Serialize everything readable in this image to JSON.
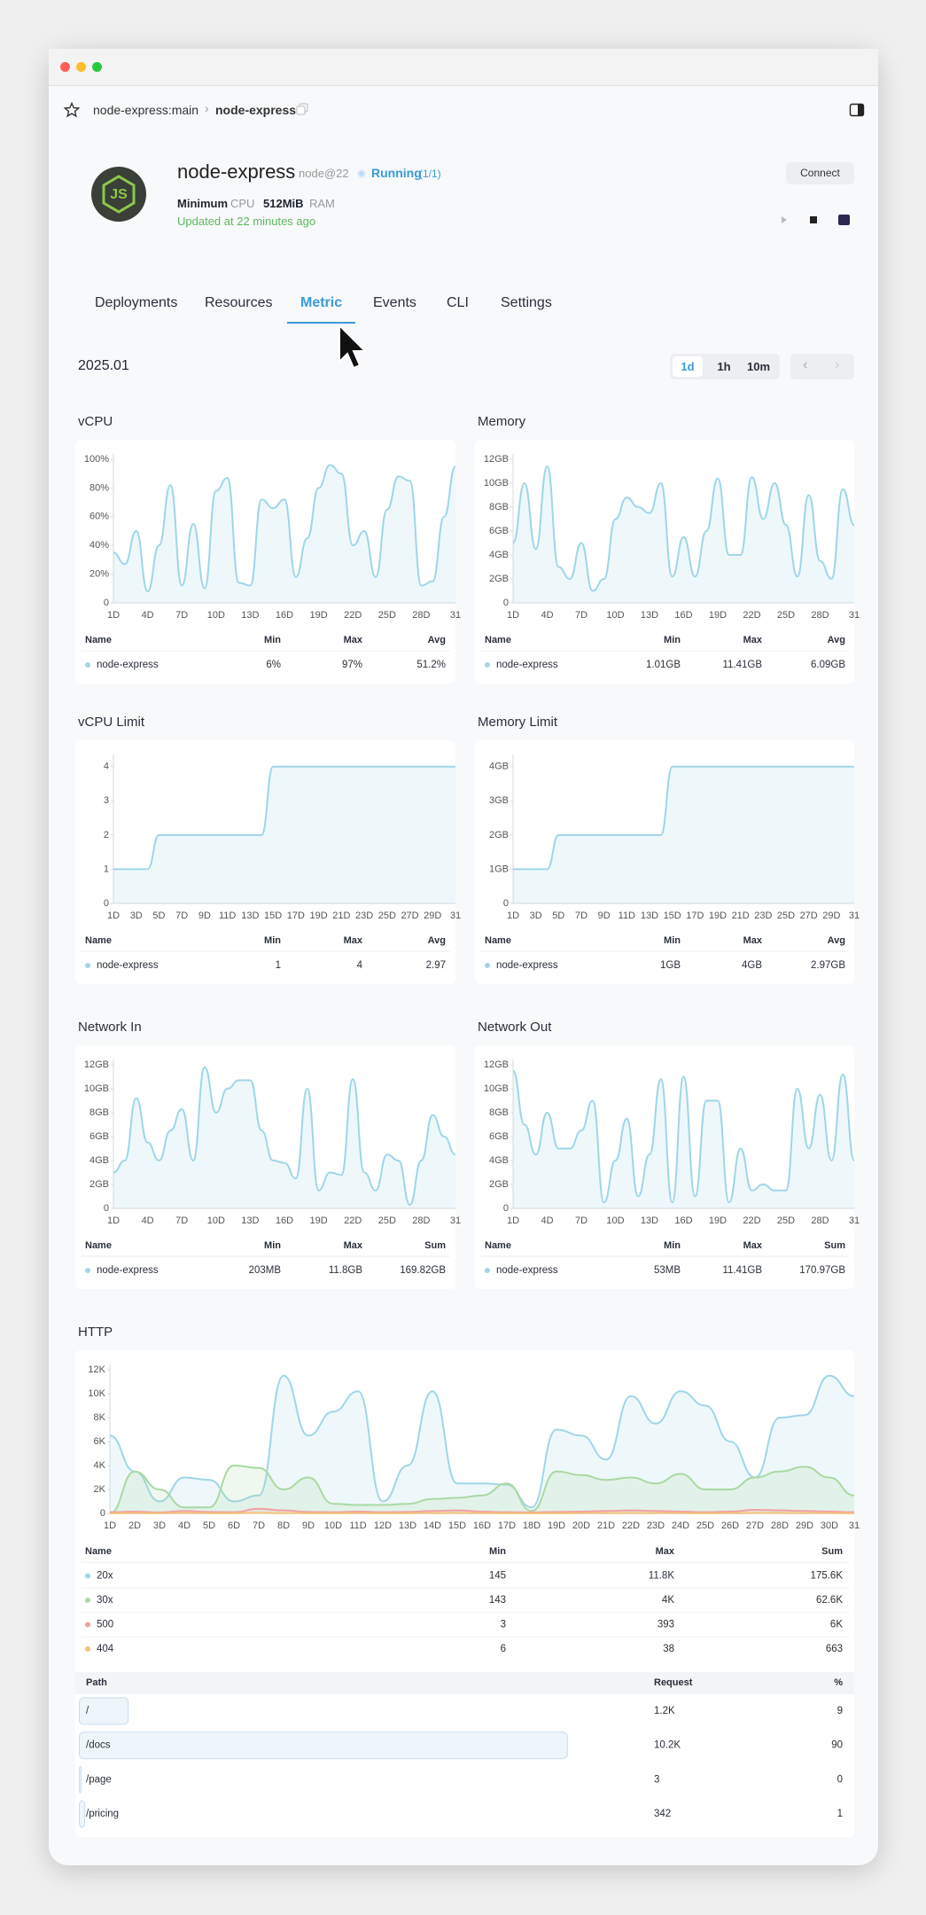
{
  "breadcrumb": [
    "node-express:main",
    "node-express"
  ],
  "service": {
    "logo": "JS",
    "name": "node-express",
    "runtime": "node@22",
    "status": "Running",
    "status_count": "(1/1)",
    "resources": [
      "Minimum",
      "CPU",
      "512MiB",
      "RAM"
    ],
    "updated": "Updated at 22 minutes ago",
    "connect": "Connect"
  },
  "tabs": [
    "Deployments",
    "Resources",
    "Metric",
    "Events",
    "CLI",
    "Settings"
  ],
  "active_tab": 2,
  "period": "2025.01",
  "ranges": [
    "1d",
    "1h",
    "10m"
  ],
  "active_range": 0,
  "chart_data": [
    {
      "type": "line",
      "title": "vCPU",
      "categories": [
        "1D",
        null,
        null,
        "4D",
        null,
        null,
        "7D",
        null,
        null,
        "10D",
        null,
        null,
        "13D",
        null,
        null,
        "16D",
        null,
        null,
        "19D",
        null,
        null,
        "22D",
        null,
        null,
        "25D",
        null,
        null,
        "28D",
        null,
        null,
        "31"
      ],
      "ylim": [
        0,
        100
      ],
      "yticks": [
        0,
        {
          "value": 20,
          "label": "20%"
        },
        {
          "value": 40,
          "label": "40%"
        },
        {
          "value": 60,
          "label": "60%"
        },
        {
          "value": 80,
          "label": "80%"
        },
        {
          "value": 100,
          "label": "100%"
        }
      ],
      "series": [
        {
          "name": "node-express",
          "color": "#9fd6e8",
          "values": [
            35,
            27,
            50,
            8,
            40,
            82,
            12,
            55,
            10,
            78,
            87,
            14,
            12,
            72,
            66,
            72,
            18,
            45,
            80,
            96,
            90,
            40,
            50,
            18,
            65,
            88,
            85,
            12,
            15,
            60,
            95
          ]
        }
      ],
      "columns": [
        "Name",
        "Min",
        "Max",
        "Avg"
      ],
      "stats": [
        [
          "6%",
          "97%",
          "51.2%"
        ]
      ]
    },
    {
      "type": "line",
      "title": "Memory",
      "categories": [
        "1D",
        null,
        null,
        "4D",
        null,
        null,
        "7D",
        null,
        null,
        "10D",
        null,
        null,
        "13D",
        null,
        null,
        "16D",
        null,
        null,
        "19D",
        null,
        null,
        "22D",
        null,
        null,
        "25D",
        null,
        null,
        "28D",
        null,
        null,
        "31"
      ],
      "ylim": [
        0,
        12
      ],
      "yticks": [
        0,
        {
          "value": 2,
          "label": "2GB"
        },
        {
          "value": 4,
          "label": "4GB"
        },
        {
          "value": 6,
          "label": "6GB"
        },
        {
          "value": 8,
          "label": "8GB"
        },
        {
          "value": 10,
          "label": "10GB"
        },
        {
          "value": 12,
          "label": "12GB"
        }
      ],
      "series": [
        {
          "name": "node-express",
          "color": "#9fd6e8",
          "values": [
            5,
            10,
            4.5,
            11.4,
            3,
            2,
            5,
            1,
            2,
            7,
            8.8,
            8,
            7.5,
            10,
            2.2,
            5.5,
            2.2,
            6,
            10.4,
            4,
            4,
            10.5,
            7,
            10,
            6.5,
            2.2,
            9,
            3.5,
            2,
            9.5,
            6.5
          ]
        }
      ],
      "columns": [
        "Name",
        "Min",
        "Max",
        "Avg"
      ],
      "stats": [
        [
          "1.01GB",
          "11.41GB",
          "6.09GB"
        ]
      ]
    },
    {
      "type": "line",
      "title": "vCPU Limit",
      "categories": [
        "1D",
        null,
        "3D",
        null,
        "5D",
        null,
        "7D",
        null,
        "9D",
        null,
        "11D",
        null,
        "13D",
        null,
        "15D",
        null,
        "17D",
        null,
        "19D",
        null,
        "21D",
        null,
        "23D",
        null,
        "25D",
        null,
        "27D",
        null,
        "29D",
        null,
        "31"
      ],
      "ylim": [
        0,
        4.2
      ],
      "yticks": [
        0,
        1,
        2,
        3,
        4
      ],
      "series": [
        {
          "name": "node-express",
          "color": "#9fd6e8",
          "values": [
            1,
            1,
            1,
            1,
            2,
            2,
            2,
            2,
            2,
            2,
            2,
            2,
            2,
            2,
            4,
            4,
            4,
            4,
            4,
            4,
            4,
            4,
            4,
            4,
            4,
            4,
            4,
            4,
            4,
            4,
            4
          ]
        }
      ],
      "columns": [
        "Name",
        "Min",
        "Max",
        "Avg"
      ],
      "stats": [
        [
          "1",
          "4",
          "2.97"
        ]
      ]
    },
    {
      "type": "line",
      "title": "Memory Limit",
      "categories": [
        "1D",
        null,
        "3D",
        null,
        "5D",
        null,
        "7D",
        null,
        "9D",
        null,
        "11D",
        null,
        "13D",
        null,
        "15D",
        null,
        "17D",
        null,
        "19D",
        null,
        "21D",
        null,
        "23D",
        null,
        "25D",
        null,
        "27D",
        null,
        "29D",
        null,
        "31"
      ],
      "ylim": [
        0,
        4.2
      ],
      "yticks": [
        0,
        {
          "value": 1,
          "label": "1GB"
        },
        {
          "value": 2,
          "label": "2GB"
        },
        {
          "value": 3,
          "label": "3GB"
        },
        {
          "value": 4,
          "label": "4GB"
        }
      ],
      "series": [
        {
          "name": "node-express",
          "color": "#9fd6e8",
          "values": [
            1,
            1,
            1,
            1,
            2,
            2,
            2,
            2,
            2,
            2,
            2,
            2,
            2,
            2,
            4,
            4,
            4,
            4,
            4,
            4,
            4,
            4,
            4,
            4,
            4,
            4,
            4,
            4,
            4,
            4,
            4
          ]
        }
      ],
      "columns": [
        "Name",
        "Min",
        "Max",
        "Avg"
      ],
      "stats": [
        [
          "1GB",
          "4GB",
          "2.97GB"
        ]
      ]
    },
    {
      "type": "line",
      "title": "Network In",
      "categories": [
        "1D",
        null,
        null,
        "4D",
        null,
        null,
        "7D",
        null,
        null,
        "10D",
        null,
        null,
        "13D",
        null,
        null,
        "16D",
        null,
        null,
        "19D",
        null,
        null,
        "22D",
        null,
        null,
        "25D",
        null,
        null,
        "28D",
        null,
        null,
        "31"
      ],
      "ylim": [
        0,
        12
      ],
      "yticks": [
        0,
        {
          "value": 2,
          "label": "2GB"
        },
        {
          "value": 4,
          "label": "4GB"
        },
        {
          "value": 6,
          "label": "6GB"
        },
        {
          "value": 8,
          "label": "8GB"
        },
        {
          "value": 10,
          "label": "10GB"
        },
        {
          "value": 12,
          "label": "12GB"
        }
      ],
      "series": [
        {
          "name": "node-express",
          "color": "#9fd6e8",
          "values": [
            3,
            4,
            9.2,
            5.5,
            4,
            6.5,
            8.3,
            4,
            11.8,
            8,
            10,
            10.7,
            10.7,
            6.5,
            4,
            3.8,
            2.5,
            10,
            1.5,
            3,
            2.8,
            10.8,
            3,
            1.5,
            4.5,
            4,
            0.3,
            4,
            7.8,
            6,
            4.5
          ]
        }
      ],
      "columns": [
        "Name",
        "Min",
        "Max",
        "Sum"
      ],
      "stats": [
        [
          "203MB",
          "11.8GB",
          "169.82GB"
        ]
      ]
    },
    {
      "type": "line",
      "title": "Network Out",
      "categories": [
        "1D",
        null,
        null,
        "4D",
        null,
        null,
        "7D",
        null,
        null,
        "10D",
        null,
        null,
        "13D",
        null,
        null,
        "16D",
        null,
        null,
        "19D",
        null,
        null,
        "22D",
        null,
        null,
        "25D",
        null,
        null,
        "28D",
        null,
        null,
        "31"
      ],
      "ylim": [
        0,
        12
      ],
      "yticks": [
        0,
        {
          "value": 2,
          "label": "2GB"
        },
        {
          "value": 4,
          "label": "4GB"
        },
        {
          "value": 6,
          "label": "6GB"
        },
        {
          "value": 8,
          "label": "8GB"
        },
        {
          "value": 10,
          "label": "10GB"
        },
        {
          "value": 12,
          "label": "12GB"
        }
      ],
      "series": [
        {
          "name": "node-express",
          "color": "#9fd6e8",
          "values": [
            11.5,
            7,
            4.5,
            8,
            5,
            5,
            6.5,
            9,
            0.5,
            4,
            7.5,
            1,
            4.5,
            10.8,
            0.5,
            11,
            1,
            9,
            9,
            0.5,
            5,
            1.5,
            2,
            1.5,
            1.5,
            10,
            5,
            9.5,
            4,
            11.2,
            4
          ]
        }
      ],
      "columns": [
        "Name",
        "Min",
        "Max",
        "Sum"
      ],
      "stats": [
        [
          "53MB",
          "11.41GB",
          "170.97GB"
        ]
      ]
    },
    {
      "type": "line",
      "title": "HTTP",
      "categories": [
        "1D",
        "2D",
        "3D",
        "4D",
        "5D",
        "6D",
        "7D",
        "8D",
        "9D",
        "10D",
        "11D",
        "12D",
        "13D",
        "14D",
        "15D",
        "16D",
        "17D",
        "18D",
        "19D",
        "20D",
        "21D",
        "22D",
        "23D",
        "24D",
        "25D",
        "26D",
        "27D",
        "28D",
        "29D",
        "30D",
        "31"
      ],
      "ylim": [
        0,
        12000
      ],
      "yticks": [
        0,
        {
          "value": 2000,
          "label": "2K"
        },
        {
          "value": 4000,
          "label": "4K"
        },
        {
          "value": 6000,
          "label": "6K"
        },
        {
          "value": 8000,
          "label": "8K"
        },
        {
          "value": 10000,
          "label": "10K"
        },
        {
          "value": 12000,
          "label": "12K"
        }
      ],
      "series": [
        {
          "name": "20x",
          "color": "#9fd6e8",
          "values": [
            6500,
            3500,
            1000,
            3000,
            2800,
            1000,
            1500,
            11500,
            6500,
            8500,
            10200,
            1000,
            4000,
            10200,
            2500,
            2500,
            2400,
            500,
            7000,
            6500,
            4500,
            9800,
            7500,
            10200,
            9000,
            6000,
            3000,
            8000,
            8200,
            11500,
            9800
          ]
        },
        {
          "name": "30x",
          "color": "#a9d9a2",
          "values": [
            0,
            3500,
            2000,
            500,
            500,
            4000,
            3800,
            2000,
            3000,
            800,
            700,
            700,
            800,
            1200,
            1300,
            1500,
            2500,
            200,
            3500,
            3200,
            2800,
            3000,
            2500,
            3300,
            2000,
            2000,
            3000,
            3500,
            3900,
            3000,
            1500
          ]
        },
        {
          "name": "500",
          "color": "#f2a0a0",
          "values": [
            100,
            150,
            80,
            200,
            120,
            100,
            393,
            250,
            120,
            100,
            150,
            100,
            120,
            200,
            250,
            150,
            100,
            80,
            120,
            150,
            200,
            250,
            200,
            150,
            100,
            150,
            300,
            250,
            200,
            150,
            100
          ]
        },
        {
          "name": "404",
          "color": "#f3c27c",
          "values": [
            10,
            15,
            8,
            20,
            12,
            10,
            38,
            20,
            12,
            10,
            15,
            10,
            12,
            20,
            25,
            15,
            10,
            8,
            12,
            15,
            20,
            25,
            20,
            15,
            10,
            15,
            30,
            25,
            20,
            15,
            10
          ]
        }
      ],
      "columns": [
        "Name",
        "Min",
        "Max",
        "Sum"
      ],
      "stats": [
        [
          "145",
          "11.8K",
          "175.6K"
        ],
        [
          "143",
          "4K",
          "62.6K"
        ],
        [
          "3",
          "393",
          "6K"
        ],
        [
          "6",
          "38",
          "663"
        ]
      ]
    }
  ],
  "http_paths": {
    "columns": [
      "Path",
      "Request",
      "%"
    ],
    "rows": [
      {
        "path": "/",
        "request": "1.2K",
        "percent": 9
      },
      {
        "path": "/docs",
        "request": "10.2K",
        "percent": 90
      },
      {
        "path": "/page",
        "request": "3",
        "percent": 0
      },
      {
        "path": "/pricing",
        "request": "342",
        "percent": 1
      }
    ]
  }
}
